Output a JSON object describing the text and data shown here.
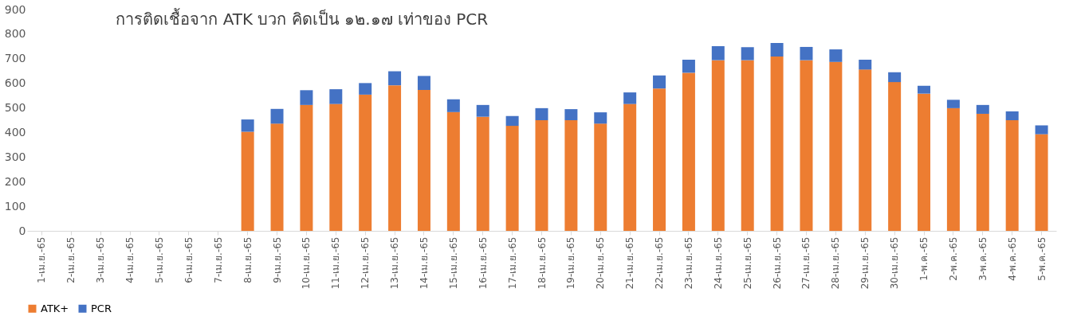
{
  "chart_data": {
    "type": "bar",
    "title": "การติดเชื้อจาก ATK บวก คิดเป็น ๑๒.๑๗ เท่าของ PCR",
    "stacked": true,
    "categories": [
      "1-เม.ย.-65",
      "2-เม.ย.-65",
      "3-เม.ย.-65",
      "4-เม.ย.-65",
      "5-เม.ย.-65",
      "6-เม.ย.-65",
      "7-เม.ย.-65",
      "8-เม.ย.-65",
      "9-เม.ย.-65",
      "10-เม.ย.-65",
      "11-เม.ย.-65",
      "12-เม.ย.-65",
      "13-เม.ย.-65",
      "14-เม.ย.-65",
      "15-เม.ย.-65",
      "16-เม.ย.-65",
      "17-เม.ย.-65",
      "18-เม.ย.-65",
      "19-เม.ย.-65",
      "20-เม.ย.-65",
      "21-เม.ย.-65",
      "22-เม.ย.-65",
      "23-เม.ย.-65",
      "24-เม.ย.-65",
      "25-เม.ย.-65",
      "26-เม.ย.-65",
      "27-เม.ย.-65",
      "28-เม.ย.-65",
      "29-เม.ย.-65",
      "30-เม.ย.-65",
      "1-พ.ค.-65",
      "2-พ.ค.-65",
      "3-พ.ค.-65",
      "4-พ.ค.-65",
      "5-พ.ค.-65"
    ],
    "series": [
      {
        "name": "ATK+",
        "color": "#ed7d31",
        "values": [
          null,
          null,
          null,
          null,
          null,
          null,
          null,
          403,
          436,
          512,
          516,
          554,
          592,
          573,
          483,
          464,
          427,
          450,
          450,
          436,
          516,
          579,
          643,
          694,
          694,
          709,
          694,
          687,
          656,
          605,
          558,
          499,
          476,
          450,
          393
        ]
      },
      {
        "name": "PCR",
        "color": "#4472c4",
        "values": [
          null,
          null,
          null,
          null,
          null,
          null,
          null,
          50,
          60,
          60,
          60,
          47,
          57,
          57,
          52,
          48,
          40,
          49,
          45,
          46,
          47,
          53,
          53,
          57,
          53,
          55,
          54,
          51,
          40,
          40,
          32,
          34,
          36,
          36,
          36
        ]
      }
    ],
    "ylim": [
      0,
      900
    ],
    "yticks": [
      0,
      100,
      200,
      300,
      400,
      500,
      600,
      700,
      800,
      900
    ],
    "grid": false,
    "legend": "bottom"
  }
}
